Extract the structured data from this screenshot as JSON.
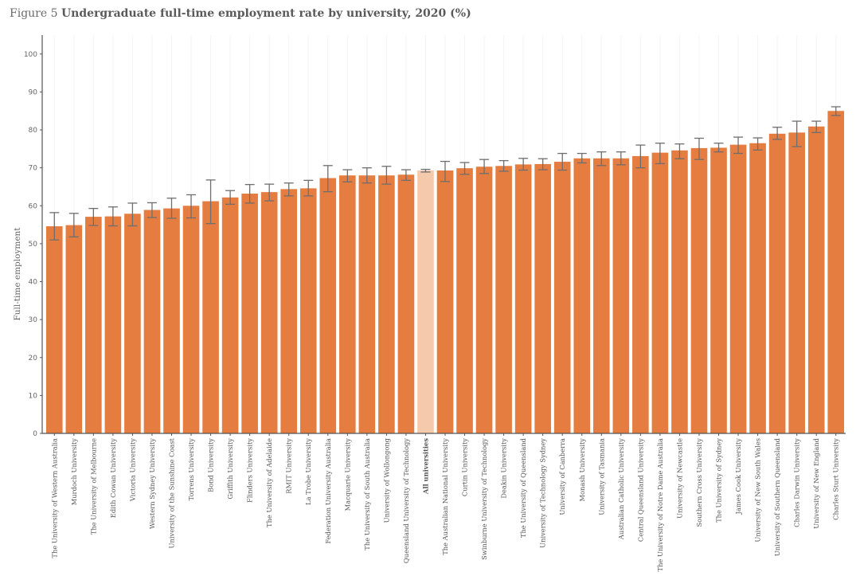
{
  "figure_label": "Figure 5",
  "chart_data": {
    "type": "bar",
    "title": "Undergraduate full-time employment rate by university, 2020 (%)",
    "xlabel": "",
    "ylabel": "Full-time employment",
    "ylim": [
      0,
      105
    ],
    "yticks": [
      0,
      10,
      20,
      30,
      40,
      50,
      60,
      70,
      80,
      90,
      100
    ],
    "grid": "vertical, faint",
    "legend": "none",
    "colors": {
      "bar": "#e57d40",
      "highlight": "#f5c9ab",
      "error_bar": "#6e6e6e"
    },
    "highlight_category": "All universities",
    "categories": [
      "The University of Western Australia",
      "Murdoch University",
      "The University of Melbourne",
      "Edith Cowan University",
      "Victoria University",
      "Western Sydney University",
      "University of the Sunshine Coast",
      "Torrens University",
      "Bond University",
      "Griffith University",
      "Flinders University",
      "The University of Adelaide",
      "RMIT University",
      "La Trobe University",
      "Federation University Australia",
      "Macquarie University",
      "The University of South Australia",
      "University of Wollongong",
      "Queensland University of Technology",
      "All universities",
      "The Australian National University",
      "Curtin University",
      "Swinburne University of Technology",
      "Deakin University",
      "The University of Queensland",
      "University of Technology Sydney",
      "University of Canberra",
      "Monash University",
      "University of Tasmania",
      "Australian Catholic University",
      "Central Queensland University",
      "The University of Notre Dame Australia",
      "University of Newcastle",
      "Southern Cross University",
      "The University of Sydney",
      "James Cook University",
      "University of New South Wales",
      "University of Southern Queensland",
      "Charles Darwin University",
      "University of New England",
      "Charles Sturt University"
    ],
    "values": [
      54.6,
      54.9,
      57.1,
      57.2,
      57.9,
      58.9,
      59.3,
      60.0,
      61.2,
      62.2,
      63.2,
      63.6,
      64.4,
      64.6,
      67.3,
      68.0,
      68.0,
      68.0,
      68.2,
      69.3,
      69.3,
      69.9,
      70.3,
      70.5,
      70.9,
      71.0,
      71.6,
      72.5,
      72.5,
      72.5,
      73.1,
      74.0,
      74.6,
      75.2,
      75.3,
      76.1,
      76.5,
      79.0,
      79.3,
      80.9,
      85.0
    ],
    "error_low": [
      51.0,
      51.8,
      54.8,
      54.7,
      54.7,
      56.9,
      56.7,
      56.8,
      55.3,
      60.4,
      60.7,
      61.3,
      62.6,
      62.6,
      63.7,
      66.3,
      66.0,
      65.7,
      66.7,
      68.9,
      66.4,
      68.3,
      68.5,
      69.1,
      69.4,
      69.5,
      69.4,
      71.3,
      70.6,
      70.8,
      70.0,
      71.1,
      72.4,
      72.2,
      74.2,
      73.8,
      74.7,
      77.5,
      75.6,
      79.3,
      83.8
    ],
    "error_high": [
      58.2,
      58.0,
      59.3,
      59.7,
      60.7,
      60.8,
      62.0,
      62.9,
      66.8,
      64.0,
      65.6,
      65.7,
      66.0,
      66.7,
      70.6,
      69.5,
      70.0,
      70.4,
      69.5,
      69.6,
      71.7,
      71.4,
      72.2,
      71.9,
      72.5,
      72.4,
      73.8,
      73.8,
      74.2,
      74.2,
      76.0,
      76.5,
      76.3,
      77.8,
      76.5,
      78.1,
      77.9,
      80.7,
      82.3,
      82.3,
      86.1
    ]
  }
}
